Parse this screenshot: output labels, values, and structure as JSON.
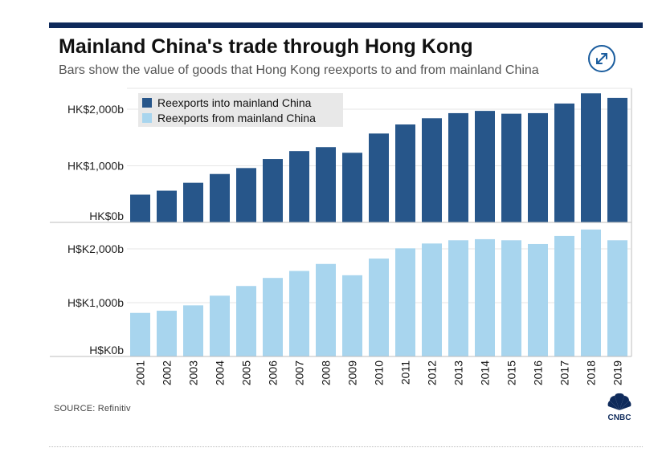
{
  "title": "Mainland China's trade through Hong Kong",
  "subtitle": "Bars show the value of goods that Hong Kong reexports to and from mainland China",
  "source": "SOURCE: Refinitiv",
  "logo_text": "CNBC",
  "expand_icon": "expand-arrows-icon",
  "colors": {
    "into": "#27568a",
    "from": "#a8d5ee",
    "rule": "#0e2a5b"
  },
  "chart_data": [
    {
      "type": "bar",
      "title": "Reexports into mainland China",
      "categories": [
        "2001",
        "2002",
        "2003",
        "2004",
        "2005",
        "2006",
        "2007",
        "2008",
        "2009",
        "2010",
        "2011",
        "2012",
        "2013",
        "2014",
        "2015",
        "2016",
        "2017",
        "2018",
        "2019"
      ],
      "values": [
        490,
        560,
        700,
        855,
        960,
        1120,
        1260,
        1330,
        1230,
        1570,
        1730,
        1840,
        1930,
        1970,
        1920,
        1930,
        2100,
        2280,
        2200
      ],
      "ylim": [
        0,
        2400
      ],
      "yticks": [
        0,
        1000,
        2000
      ],
      "yticklabels": [
        "HK$0b",
        "HK$1,000b",
        "HK$2,000b"
      ],
      "legend_label": "Reexports into mainland China",
      "legend_position": "top-left"
    },
    {
      "type": "bar",
      "title": "Reexports from mainland China",
      "categories": [
        "2001",
        "2002",
        "2003",
        "2004",
        "2005",
        "2006",
        "2007",
        "2008",
        "2009",
        "2010",
        "2011",
        "2012",
        "2013",
        "2014",
        "2015",
        "2016",
        "2017",
        "2018",
        "2019"
      ],
      "values": [
        810,
        850,
        950,
        1130,
        1310,
        1460,
        1590,
        1720,
        1510,
        1820,
        2010,
        2100,
        2160,
        2180,
        2160,
        2090,
        2240,
        2360,
        2160
      ],
      "ylim": [
        0,
        2400
      ],
      "yticks": [
        0,
        1000,
        2000
      ],
      "yticklabels": [
        "H$K0b",
        "H$K1,000b",
        "H$K2,000b"
      ],
      "legend_label": "Reexports from mainland China",
      "legend_position": "top-left"
    }
  ]
}
